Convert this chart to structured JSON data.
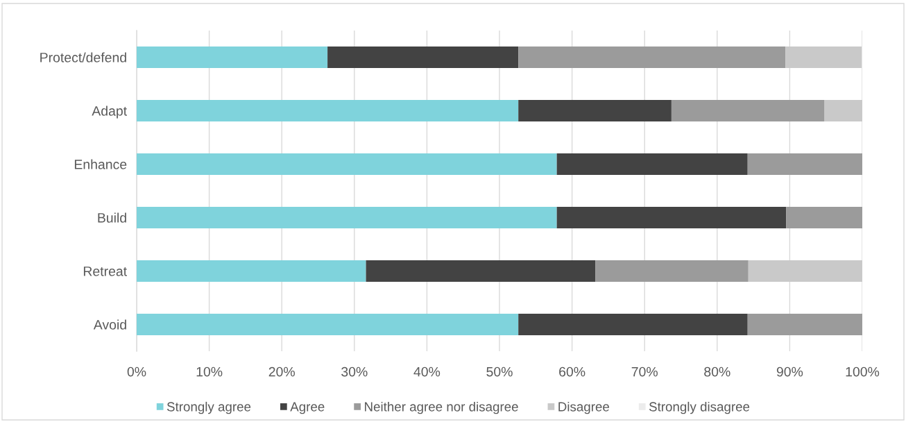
{
  "chart_data": {
    "type": "bar",
    "orientation": "horizontal",
    "stacked": true,
    "categories": [
      "Protect/defend",
      "Adapt",
      "Enhance",
      "Build",
      "Retreat",
      "Avoid"
    ],
    "series": [
      {
        "name": "Strongly agree",
        "color": "#7fd3dc",
        "values": [
          26.3,
          52.6,
          57.9,
          57.9,
          31.6,
          52.6
        ]
      },
      {
        "name": "Agree",
        "color": "#434343",
        "values": [
          26.3,
          21.1,
          26.3,
          31.6,
          31.6,
          31.6
        ]
      },
      {
        "name": "Neither agree nor disagree",
        "color": "#9b9b9b",
        "values": [
          36.8,
          21.1,
          15.8,
          10.5,
          21.1,
          15.8
        ]
      },
      {
        "name": "Disagree",
        "color": "#c9c9c9",
        "values": [
          10.5,
          5.3,
          0,
          0,
          15.8,
          0
        ]
      },
      {
        "name": "Strongly disagree",
        "color": "#ececec",
        "values": [
          0,
          0,
          0,
          0,
          0,
          0
        ]
      }
    ],
    "xlim": [
      0,
      100
    ],
    "xticks": [
      {
        "value": 0,
        "label": "0%"
      },
      {
        "value": 10,
        "label": "10%"
      },
      {
        "value": 20,
        "label": "20%"
      },
      {
        "value": 30,
        "label": "30%"
      },
      {
        "value": 40,
        "label": "40%"
      },
      {
        "value": 50,
        "label": "50%"
      },
      {
        "value": 60,
        "label": "60%"
      },
      {
        "value": 70,
        "label": "70%"
      },
      {
        "value": 80,
        "label": "80%"
      },
      {
        "value": 90,
        "label": "90%"
      },
      {
        "value": 100,
        "label": "100%"
      }
    ],
    "grid": "x",
    "legend": "bottom"
  }
}
